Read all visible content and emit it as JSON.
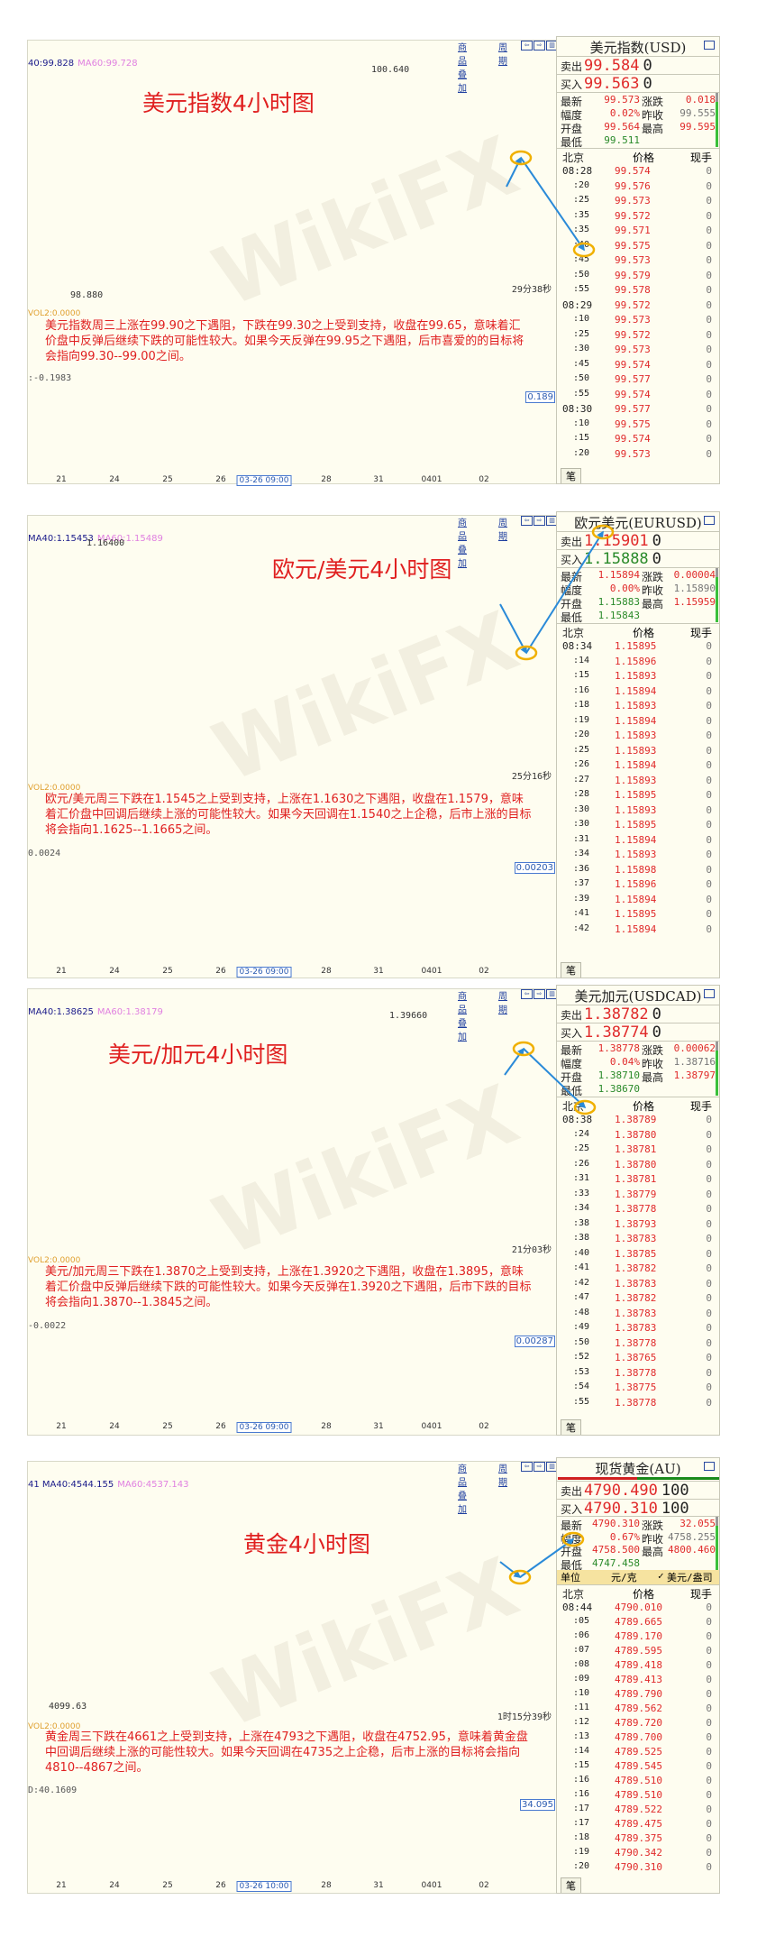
{
  "watermark": "WikiFX",
  "toolbar": {
    "overlay": "商品叠加",
    "period": "周期"
  },
  "colors": {
    "up": "#e02a2a",
    "down": "#2a8a2a",
    "annotation": "#e02020",
    "highlight_ring": "#f0b000",
    "projection": "#2a8ad8",
    "ma40": "#1a1a8a",
    "ma60": "#e080e0"
  },
  "panels": [
    {
      "chart_title": "美元指数4小时图",
      "ma40": "40:99.828",
      "ma60": "MA60:99.728",
      "high_label": "100.640",
      "low_label": "98.880",
      "timer": "29分38秒",
      "vol": "VOL2:0.0000",
      "analysis": "美元指数周三上涨在99.90之下遇阻，下跌在99.30之上受到支持，收盘在99.65，意味着汇价盘中反弹后继续下跌的可能性较大。如果今天反弹在99.95之下遇阻，后市喜爱的的目标将会指向99.30--99.00之间。",
      "macd_label": ":-0.1983",
      "macd_value": "0.189",
      "axis": [
        "21",
        "24",
        "25",
        "26",
        "03-26 09:00",
        "28",
        "31",
        "0401",
        "02"
      ],
      "side": {
        "title": "美元指数(USD)",
        "sell": {
          "label": "卖出",
          "price": "99.584",
          "qty": "0",
          "tone": "up"
        },
        "buy": {
          "label": "买入",
          "price": "99.563",
          "qty": "0",
          "tone": "up"
        },
        "stats": [
          {
            "label": "最新",
            "value": "99.573",
            "tone": "up"
          },
          {
            "label": "涨跌",
            "value": "0.018",
            "tone": "up"
          },
          {
            "label": "幅度",
            "value": "0.02%",
            "tone": "up"
          },
          {
            "label": "昨收",
            "value": "99.555",
            "tone": "flat"
          },
          {
            "label": "开盘",
            "value": "99.564",
            "tone": "up"
          },
          {
            "label": "最高",
            "value": "99.595",
            "tone": "up"
          },
          {
            "label": "最低",
            "value": "99.511",
            "tone": "down"
          }
        ],
        "headers": [
          "北京",
          "价格",
          "现手"
        ],
        "ticks": [
          [
            "08:28",
            "99.574",
            "0"
          ],
          [
            ":20",
            "99.576",
            "0"
          ],
          [
            ":25",
            "99.573",
            "0"
          ],
          [
            ":35",
            "99.572",
            "0"
          ],
          [
            ":35",
            "99.571",
            "0"
          ],
          [
            ":40",
            "99.575",
            "0"
          ],
          [
            ":45",
            "99.573",
            "0"
          ],
          [
            ":50",
            "99.579",
            "0"
          ],
          [
            ":55",
            "99.578",
            "0"
          ],
          [
            "08:29",
            "99.572",
            "0"
          ],
          [
            ":10",
            "99.573",
            "0"
          ],
          [
            ":25",
            "99.572",
            "0"
          ],
          [
            ":30",
            "99.573",
            "0"
          ],
          [
            ":45",
            "99.574",
            "0"
          ],
          [
            ":50",
            "99.577",
            "0"
          ],
          [
            ":55",
            "99.574",
            "0"
          ],
          [
            "08:30",
            "99.577",
            "0"
          ],
          [
            ":10",
            "99.575",
            "0"
          ],
          [
            ":15",
            "99.574",
            "0"
          ],
          [
            ":20",
            "99.573",
            "0"
          ]
        ],
        "tab": "笔"
      }
    },
    {
      "chart_title": "欧元/美元4小时图",
      "ma40": "MA40:1.15453",
      "ma60": "MA60:1.15489",
      "high_label": "1.16400",
      "low_label": "",
      "timer": "25分16秒",
      "vol": "VOL2:0.0000",
      "analysis": "欧元/美元周三下跌在1.1545之上受到支持，上涨在1.1630之下遇阻，收盘在1.1579，意味着汇价盘中回调后继续上涨的可能性较大。如果今天回调在1.1540之上企稳，后市上涨的目标将会指向1.1625--1.1665之间。",
      "macd_label": "0.0024",
      "macd_value": "0.00203",
      "axis": [
        "21",
        "24",
        "25",
        "26",
        "03-26 09:00",
        "28",
        "31",
        "0401",
        "02"
      ],
      "side": {
        "title": "欧元美元(EURUSD)",
        "sell": {
          "label": "卖出",
          "price": "1.15901",
          "qty": "0",
          "tone": "up"
        },
        "buy": {
          "label": "买入",
          "price": "1.15888",
          "qty": "0",
          "tone": "down"
        },
        "stats": [
          {
            "label": "最新",
            "value": "1.15894",
            "tone": "up"
          },
          {
            "label": "涨跌",
            "value": "0.00004",
            "tone": "up"
          },
          {
            "label": "幅度",
            "value": "0.00%",
            "tone": "up"
          },
          {
            "label": "昨收",
            "value": "1.15890",
            "tone": "flat"
          },
          {
            "label": "开盘",
            "value": "1.15883",
            "tone": "down"
          },
          {
            "label": "最高",
            "value": "1.15959",
            "tone": "up"
          },
          {
            "label": "最低",
            "value": "1.15843",
            "tone": "down"
          }
        ],
        "headers": [
          "北京",
          "价格",
          "现手"
        ],
        "ticks": [
          [
            "08:34",
            "1.15895",
            "0"
          ],
          [
            ":14",
            "1.15896",
            "0"
          ],
          [
            ":15",
            "1.15893",
            "0"
          ],
          [
            ":16",
            "1.15894",
            "0"
          ],
          [
            ":18",
            "1.15893",
            "0"
          ],
          [
            ":19",
            "1.15894",
            "0"
          ],
          [
            ":20",
            "1.15893",
            "0"
          ],
          [
            ":25",
            "1.15893",
            "0"
          ],
          [
            ":26",
            "1.15894",
            "0"
          ],
          [
            ":27",
            "1.15893",
            "0"
          ],
          [
            ":28",
            "1.15895",
            "0"
          ],
          [
            ":30",
            "1.15893",
            "0"
          ],
          [
            ":30",
            "1.15895",
            "0"
          ],
          [
            ":31",
            "1.15894",
            "0"
          ],
          [
            ":34",
            "1.15893",
            "0"
          ],
          [
            ":36",
            "1.15898",
            "0"
          ],
          [
            ":37",
            "1.15896",
            "0"
          ],
          [
            ":39",
            "1.15894",
            "0"
          ],
          [
            ":41",
            "1.15895",
            "0"
          ],
          [
            ":42",
            "1.15894",
            "0"
          ]
        ],
        "tab": "笔"
      }
    },
    {
      "chart_title": "美元/加元4小时图",
      "ma40": "MA40:1.38625",
      "ma60": "MA60:1.38179",
      "high_label": "1.39660",
      "low_label": "",
      "timer": "21分03秒",
      "vol": "VOL2:0.0000",
      "analysis": "美元/加元周三下跌在1.3870之上受到支持，上涨在1.3920之下遇阻，收盘在1.3895，意味着汇价盘中反弹后继续下跌的可能性较大。如果今天反弹在1.3920之下遇阻，后市下跌的目标将会指向1.3870--1.3845之间。",
      "macd_label": "-0.0022",
      "macd_value": "0.00287",
      "axis": [
        "21",
        "24",
        "25",
        "26",
        "03-26 09:00",
        "28",
        "31",
        "0401",
        "02"
      ],
      "side": {
        "title": "美元加元(USDCAD)",
        "sell": {
          "label": "卖出",
          "price": "1.38782",
          "qty": "0",
          "tone": "up"
        },
        "buy": {
          "label": "买入",
          "price": "1.38774",
          "qty": "0",
          "tone": "up"
        },
        "stats": [
          {
            "label": "最新",
            "value": "1.38778",
            "tone": "up"
          },
          {
            "label": "涨跌",
            "value": "0.00062",
            "tone": "up"
          },
          {
            "label": "幅度",
            "value": "0.04%",
            "tone": "up"
          },
          {
            "label": "昨收",
            "value": "1.38716",
            "tone": "flat"
          },
          {
            "label": "开盘",
            "value": "1.38710",
            "tone": "down"
          },
          {
            "label": "最高",
            "value": "1.38797",
            "tone": "up"
          },
          {
            "label": "最低",
            "value": "1.38670",
            "tone": "down"
          }
        ],
        "headers": [
          "北京",
          "价格",
          "现手"
        ],
        "ticks": [
          [
            "08:38",
            "1.38789",
            "0"
          ],
          [
            ":24",
            "1.38780",
            "0"
          ],
          [
            ":25",
            "1.38781",
            "0"
          ],
          [
            ":26",
            "1.38780",
            "0"
          ],
          [
            ":31",
            "1.38781",
            "0"
          ],
          [
            ":33",
            "1.38779",
            "0"
          ],
          [
            ":34",
            "1.38778",
            "0"
          ],
          [
            ":38",
            "1.38793",
            "0"
          ],
          [
            ":38",
            "1.38783",
            "0"
          ],
          [
            ":40",
            "1.38785",
            "0"
          ],
          [
            ":41",
            "1.38782",
            "0"
          ],
          [
            ":42",
            "1.38783",
            "0"
          ],
          [
            ":47",
            "1.38782",
            "0"
          ],
          [
            ":48",
            "1.38783",
            "0"
          ],
          [
            ":49",
            "1.38783",
            "0"
          ],
          [
            ":50",
            "1.38778",
            "0"
          ],
          [
            ":52",
            "1.38765",
            "0"
          ],
          [
            ":53",
            "1.38778",
            "0"
          ],
          [
            ":54",
            "1.38775",
            "0"
          ],
          [
            ":55",
            "1.38778",
            "0"
          ]
        ],
        "tab": "笔"
      }
    },
    {
      "chart_title": "黄金4小时图",
      "ma40": "41 MA40:4544.155",
      "ma60": "MA60:4537.143",
      "high_label": "",
      "low_label": "4099.63",
      "timer": "1时15分39秒",
      "vol": "VOL2:0.0000",
      "analysis": "黄金周三下跌在4661之上受到支持，上涨在4793之下遇阻，收盘在4752.95，意味着黄金盘中回调后继续上涨的可能性较大。如果今天回调在4735之上企稳，后市上涨的目标将会指向4810--4867之间。",
      "macd_label": "D:40.1609",
      "macd_value": "34.095",
      "axis": [
        "21",
        "24",
        "25",
        "26",
        "03-26 10:00",
        "28",
        "31",
        "0401",
        "02"
      ],
      "side": {
        "title": "现货黄金(AU)",
        "sell": {
          "label": "卖出",
          "price": "4790.490",
          "qty": "100",
          "tone": "up"
        },
        "buy": {
          "label": "买入",
          "price": "4790.310",
          "qty": "100",
          "tone": "up"
        },
        "stats": [
          {
            "label": "最新",
            "value": "4790.310",
            "tone": "up"
          },
          {
            "label": "涨跌",
            "value": "32.055",
            "tone": "up"
          },
          {
            "label": "幅度",
            "value": "0.67%",
            "tone": "up"
          },
          {
            "label": "昨收",
            "value": "4758.255",
            "tone": "flat"
          },
          {
            "label": "开盘",
            "value": "4758.500",
            "tone": "up"
          },
          {
            "label": "最高",
            "value": "4800.460",
            "tone": "up"
          },
          {
            "label": "最低",
            "value": "4747.458",
            "tone": "down"
          }
        ],
        "unit": {
          "label": "单位",
          "option1": "元/克",
          "option2": "美元/盎司",
          "selected": "美元/盎司"
        },
        "headers": [
          "北京",
          "价格",
          "现手"
        ],
        "ticks": [
          [
            "08:44",
            "4790.010",
            "0"
          ],
          [
            ":05",
            "4789.665",
            "0"
          ],
          [
            ":06",
            "4789.170",
            "0"
          ],
          [
            ":07",
            "4789.595",
            "0"
          ],
          [
            ":08",
            "4789.418",
            "0"
          ],
          [
            ":09",
            "4789.413",
            "0"
          ],
          [
            ":10",
            "4789.790",
            "0"
          ],
          [
            ":11",
            "4789.562",
            "0"
          ],
          [
            ":12",
            "4789.720",
            "0"
          ],
          [
            ":13",
            "4789.700",
            "0"
          ],
          [
            ":14",
            "4789.525",
            "0"
          ],
          [
            ":15",
            "4789.545",
            "0"
          ],
          [
            ":16",
            "4789.510",
            "0"
          ],
          [
            ":16",
            "4789.510",
            "0"
          ],
          [
            ":17",
            "4789.522",
            "0"
          ],
          [
            ":17",
            "4789.475",
            "0"
          ],
          [
            ":18",
            "4789.375",
            "0"
          ],
          [
            ":19",
            "4790.342",
            "0"
          ],
          [
            ":20",
            "4790.310",
            "0"
          ]
        ],
        "tab": "笔"
      }
    }
  ]
}
